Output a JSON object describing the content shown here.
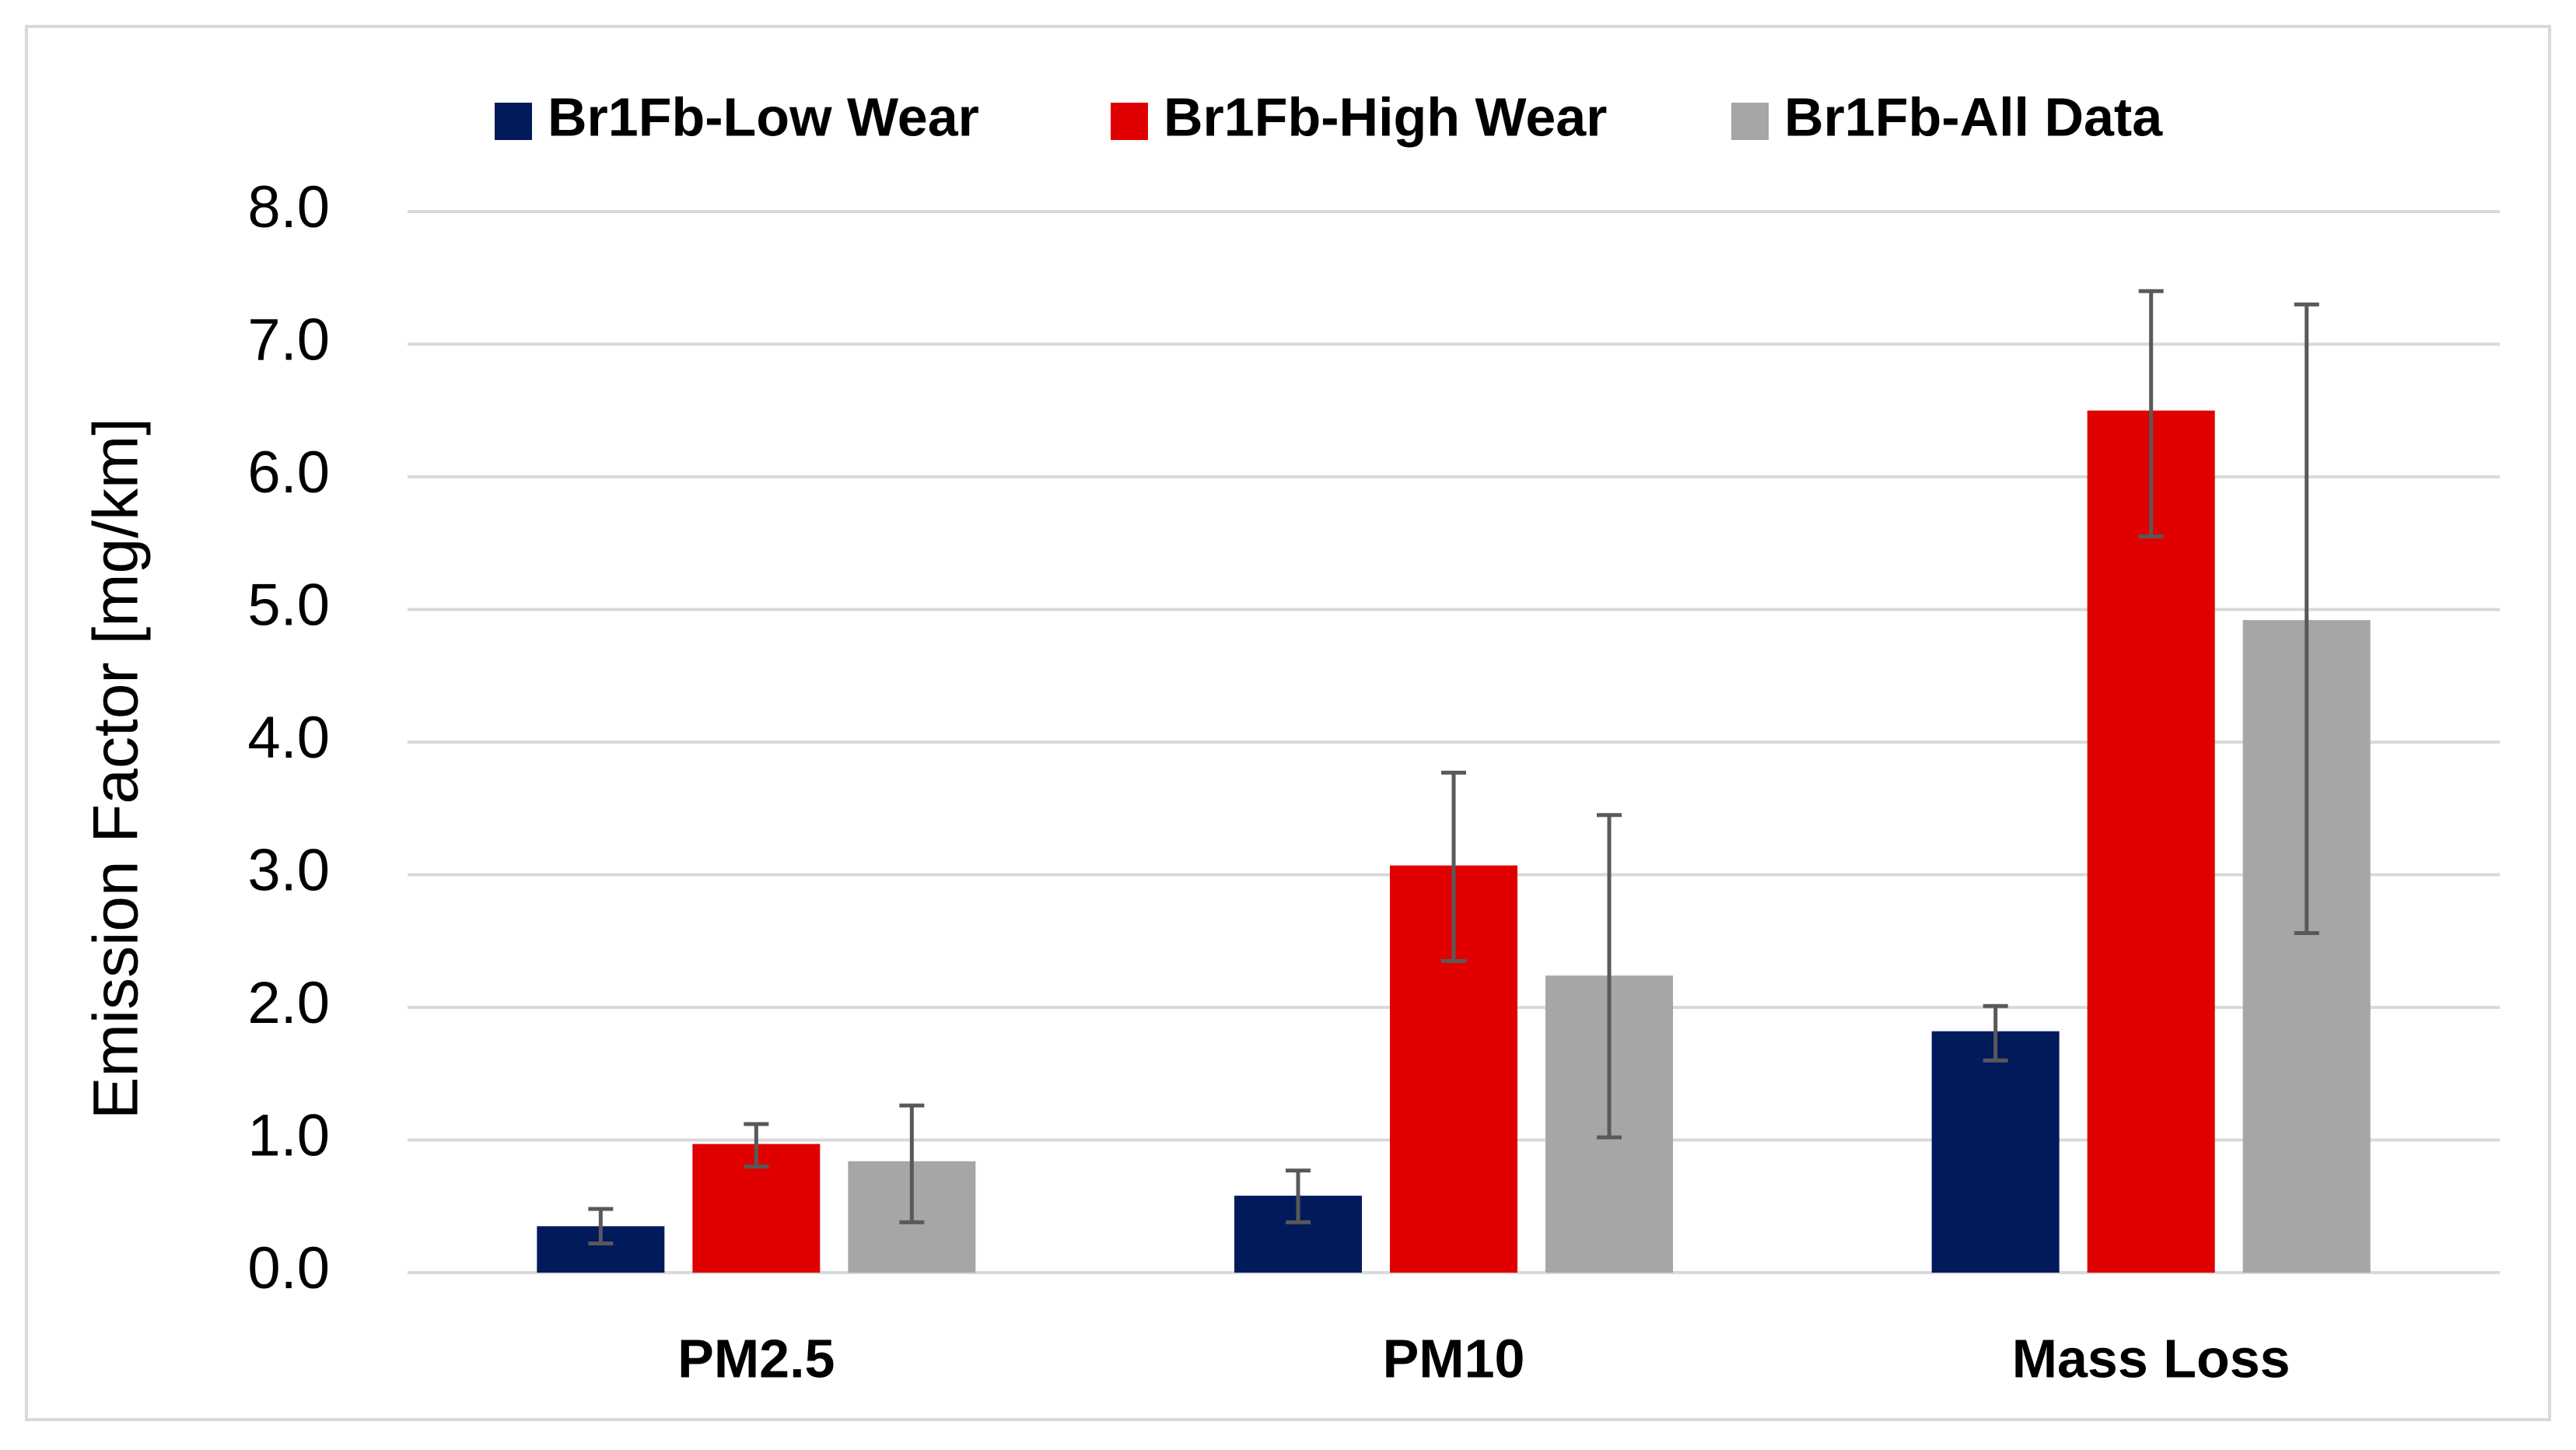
{
  "chart_data": {
    "type": "bar",
    "title": "",
    "xlabel": "",
    "ylabel": "Emission Factor [mg/km]",
    "ylim": [
      0,
      8
    ],
    "ytick_step": 1,
    "ytick_labels": [
      "0.0",
      "1.0",
      "2.0",
      "3.0",
      "4.0",
      "5.0",
      "6.0",
      "7.0",
      "8.0"
    ],
    "grid": true,
    "legend_position": "top-center",
    "categories": [
      "PM2.5",
      "PM10",
      "Mass Loss"
    ],
    "series": [
      {
        "name": "Br1Fb-Low Wear",
        "color": "#001A5C",
        "values": [
          0.35,
          0.58,
          1.82
        ],
        "err_low": [
          0.22,
          0.38,
          1.6
        ],
        "err_high": [
          0.48,
          0.77,
          2.01
        ]
      },
      {
        "name": "Br1Fb-High Wear",
        "color": "#E00000",
        "values": [
          0.97,
          3.07,
          6.5
        ],
        "err_low": [
          0.8,
          2.35,
          5.55
        ],
        "err_high": [
          1.12,
          3.77,
          7.4
        ]
      },
      {
        "name": "Br1Fb-All Data",
        "color": "#A6A6A6",
        "values": [
          0.84,
          2.24,
          4.92
        ],
        "err_low": [
          0.38,
          1.02,
          2.56
        ],
        "err_high": [
          1.26,
          3.45,
          7.3
        ]
      }
    ],
    "error_bar_color": "#595959",
    "gridline_color": "#D9D9D9",
    "frame_color": "#D9D9D9"
  }
}
